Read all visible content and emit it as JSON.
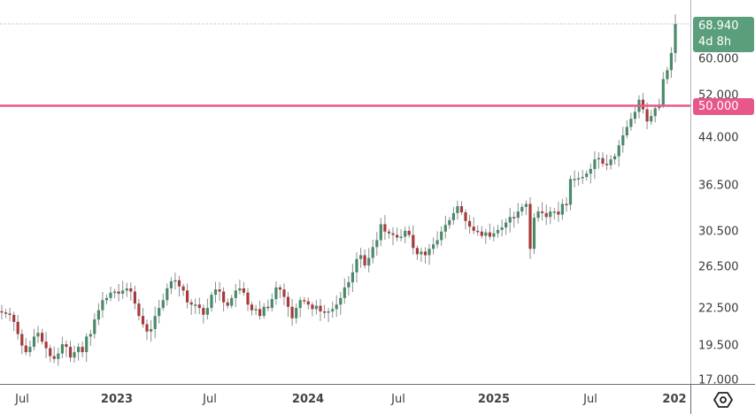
{
  "chart_data": {
    "type": "candlestick",
    "title": "",
    "xlabel": "",
    "ylabel": "",
    "scale": "log",
    "grid": false,
    "ylim": [
      17.0,
      69.5
    ],
    "x_tick_labels": [
      "Jul",
      "2023",
      "Jul",
      "2024",
      "Jul",
      "2025",
      "Jul",
      "202"
    ],
    "y_tick_labels": [
      "60.000",
      "52.000",
      "44.000",
      "36.500",
      "30.500",
      "26.500",
      "22.500",
      "19.500",
      "17.000"
    ],
    "last_price": "68.940",
    "countdown": "4d 8h",
    "horizontal_line": {
      "value": "50.000",
      "color": "#e8578a"
    },
    "colors": {
      "up": "#4a8a68",
      "down": "#a83a3a",
      "last_badge": "#5b9e7c",
      "level_badge": "#e8578a",
      "wick": "#8a8d94"
    },
    "interval": "weekly",
    "closes_approx": [
      22.2,
      22.1,
      22.0,
      21.4,
      20.4,
      19.5,
      19.0,
      19.4,
      20.2,
      20.5,
      19.8,
      19.3,
      18.7,
      18.5,
      18.9,
      19.6,
      19.4,
      18.6,
      19.0,
      19.4,
      19.0,
      20.2,
      20.4,
      21.6,
      22.4,
      23.3,
      23.5,
      24.0,
      24.1,
      23.9,
      24.2,
      24.4,
      24.1,
      23.0,
      21.9,
      21.2,
      20.6,
      20.8,
      21.9,
      22.6,
      23.3,
      24.4,
      25.1,
      25.2,
      24.6,
      24.2,
      23.1,
      22.9,
      22.9,
      22.6,
      22.0,
      22.6,
      23.8,
      24.3,
      24.1,
      23.1,
      22.8,
      23.5,
      24.2,
      24.4,
      24.0,
      22.9,
      22.4,
      22.5,
      21.9,
      22.7,
      22.6,
      23.4,
      24.5,
      24.3,
      23.6,
      22.7,
      21.7,
      22.6,
      23.3,
      23.2,
      22.9,
      22.5,
      22.8,
      22.3,
      22.2,
      22.3,
      22.5,
      22.9,
      23.5,
      24.5,
      25.0,
      26.0,
      27.4,
      27.8,
      26.7,
      27.5,
      28.7,
      29.5,
      31.4,
      30.5,
      30.3,
      30.1,
      29.8,
      29.9,
      30.6,
      30.1,
      28.6,
      27.9,
      28.2,
      27.8,
      28.5,
      29.0,
      29.5,
      30.5,
      31.3,
      31.9,
      32.8,
      33.7,
      32.9,
      31.8,
      31.1,
      30.6,
      30.5,
      30.0,
      30.4,
      29.9,
      30.3,
      30.7,
      31.0,
      31.6,
      32.3,
      32.2,
      33.0,
      33.6,
      34.0,
      28.5,
      32.2,
      33.0,
      32.8,
      32.3,
      33.0,
      33.0,
      32.6,
      34.0,
      33.9,
      37.5,
      37.5,
      37.6,
      37.8,
      38.3,
      39.0,
      40.5,
      40.7,
      39.8,
      39.6,
      40.5,
      41.0,
      42.8,
      44.5,
      46.0,
      47.5,
      48.8,
      51.2,
      49.3,
      47.0,
      48.0,
      49.5,
      50.2,
      55.5,
      57.5,
      61.5,
      68.9
    ]
  },
  "price_axis": {
    "ticks": [
      {
        "label": "60.000",
        "value": 60.0
      },
      {
        "label": "52.000",
        "value": 52.0
      },
      {
        "label": "44.000",
        "value": 44.0
      },
      {
        "label": "36.500",
        "value": 36.5
      },
      {
        "label": "30.500",
        "value": 30.5
      },
      {
        "label": "26.500",
        "value": 26.5
      },
      {
        "label": "22.500",
        "value": 22.5
      },
      {
        "label": "19.500",
        "value": 19.5
      },
      {
        "label": "17.000",
        "value": 17.0
      }
    ],
    "last_price_badge": {
      "price": "68.940",
      "countdown": "4d 8h"
    },
    "level_badge": {
      "price": "50.000"
    }
  },
  "time_axis": {
    "ticks": [
      {
        "label": "Jul",
        "x": 25,
        "year": false
      },
      {
        "label": "2023",
        "x": 132,
        "year": true
      },
      {
        "label": "Jul",
        "x": 237,
        "year": false
      },
      {
        "label": "2024",
        "x": 348,
        "year": true
      },
      {
        "label": "Jul",
        "x": 450,
        "year": false
      },
      {
        "label": "2025",
        "x": 558,
        "year": true
      },
      {
        "label": "Jul",
        "x": 667,
        "year": false
      },
      {
        "label": "202",
        "x": 762,
        "year": true
      }
    ]
  },
  "settings": {
    "icon": "settings-hexagon-icon"
  }
}
